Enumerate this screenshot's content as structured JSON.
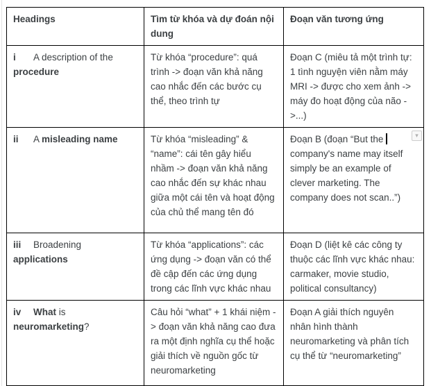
{
  "table": {
    "header": [
      "Headings",
      "Tìm từ khóa và dự đoán nội dung",
      "Đoạn văn tương ứng"
    ],
    "rows": [
      {
        "num": "i",
        "heading": [
          {
            "t": "A description of the ",
            "b": false
          },
          {
            "t": "procedure",
            "b": true
          }
        ],
        "keywords": "Từ khóa “procedure”: quá trình -> đoạn văn khả năng cao nhắc đến các bước cụ thể, theo trình tự",
        "paragraph": "Đoạn C (miêu tả một trình tự: 1 tình nguyện viên nằm máy MRI -> được cho xem ảnh -> máy đo hoạt động của não ->...)"
      },
      {
        "num": "ii",
        "heading": [
          {
            "t": "A ",
            "b": false
          },
          {
            "t": "misleading name",
            "b": true
          }
        ],
        "keywords": "Từ khóa “misleading” & “name”: cái tên gây hiểu nhầm -> đoạn văn khả năng cao nhắc đến sự khác nhau giữa một cái tên và hoạt động của chủ thể mang tên đó",
        "paragraph_before_cursor": "Đoạn B (đoạn “But the ",
        "paragraph_after_cursor": "company's name may itself simply be an example of clever marketing. The company does not scan..”)"
      },
      {
        "num": "iii",
        "heading": [
          {
            "t": "Broadening ",
            "b": false
          },
          {
            "t": "applications",
            "b": true
          }
        ],
        "keywords": "Từ khóa “applications”: các ứng dụng -> đoạn văn có thể đề cập đến các ứng dụng trong các lĩnh vực khác nhau",
        "paragraph": "Đoạn D (liệt kê các công ty thuộc các lĩnh vực khác nhau: carmaker, movie studio, political consultancy)"
      },
      {
        "num": "iv",
        "heading": [
          {
            "t": "What",
            "b": true
          },
          {
            "t": " is ",
            "b": false
          },
          {
            "t": "neuromarketing",
            "b": true
          },
          {
            "t": "?",
            "b": false
          }
        ],
        "keywords": "Câu hỏi “what” + 1 khái niệm -> đoạn văn khả năng cao đưa ra một định nghĩa cụ thể hoặc giải thích về nguồn gốc từ neuromarketing",
        "paragraph": "Đoạn A giải thích nguyên nhân hình thành neuromarketing và phân tích cụ thể từ “neuromarketing”"
      }
    ]
  },
  "icons": {
    "scroll_marker": "▾"
  },
  "colors": {
    "table_border": "#000000",
    "text": "#3c4043",
    "marker_background": "#f8f8f8",
    "marker_border": "#cccccc",
    "marker_glyph": "#b0b0b0"
  }
}
